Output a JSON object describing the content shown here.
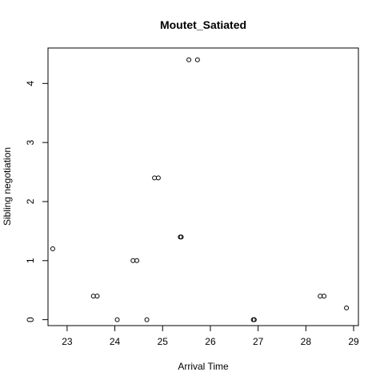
{
  "chart_data": {
    "type": "scatter",
    "title": "Moutet_Satiated",
    "xlabel": "Arrival Time",
    "ylabel": "Sibling negotiation",
    "xlim": [
      22.6,
      29.1
    ],
    "ylim": [
      -0.1,
      4.6
    ],
    "xticks": [
      23,
      24,
      25,
      26,
      27,
      28,
      29
    ],
    "yticks": [
      0,
      1,
      2,
      3,
      4
    ],
    "grid": false,
    "marker": "open-circle",
    "color": "#000000",
    "points": [
      {
        "x": 22.7,
        "y": 1.2
      },
      {
        "x": 23.55,
        "y": 0.4
      },
      {
        "x": 23.63,
        "y": 0.4
      },
      {
        "x": 24.05,
        "y": 0.0
      },
      {
        "x": 24.38,
        "y": 1.0
      },
      {
        "x": 24.46,
        "y": 1.0
      },
      {
        "x": 24.67,
        "y": 0.0
      },
      {
        "x": 24.83,
        "y": 2.4
      },
      {
        "x": 24.91,
        "y": 2.4
      },
      {
        "x": 25.37,
        "y": 1.4
      },
      {
        "x": 25.39,
        "y": 1.4
      },
      {
        "x": 25.55,
        "y": 4.4
      },
      {
        "x": 25.73,
        "y": 4.4
      },
      {
        "x": 26.9,
        "y": 0.0
      },
      {
        "x": 26.92,
        "y": 0.0
      },
      {
        "x": 28.3,
        "y": 0.4
      },
      {
        "x": 28.38,
        "y": 0.4
      },
      {
        "x": 28.85,
        "y": 0.2
      }
    ]
  }
}
